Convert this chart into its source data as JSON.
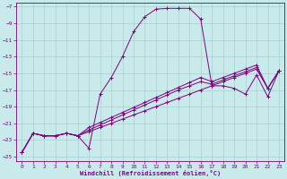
{
  "xlabel": "Windchill (Refroidissement éolien,°C)",
  "bg_color": "#c8eaea",
  "grid_color": "#aacece",
  "line_color": "#800080",
  "xlim": [
    -0.5,
    23.5
  ],
  "ylim": [
    -25.5,
    -6.5
  ],
  "yticks": [
    -7,
    -9,
    -11,
    -13,
    -15,
    -17,
    -19,
    -21,
    -23,
    -25
  ],
  "xticks": [
    0,
    1,
    2,
    3,
    4,
    5,
    6,
    7,
    8,
    9,
    10,
    11,
    12,
    13,
    14,
    15,
    16,
    17,
    18,
    19,
    20,
    21,
    22,
    23
  ],
  "line1_x": [
    0,
    1,
    2,
    3,
    4,
    5,
    6,
    7,
    8,
    9,
    10,
    11,
    12,
    13,
    14,
    15,
    16,
    17,
    18,
    19,
    20,
    21,
    22,
    23
  ],
  "line1_y": [
    -24.5,
    -22.2,
    -22.5,
    -22.5,
    -22.2,
    -22.5,
    -24.0,
    -17.5,
    -15.5,
    -13.0,
    -10.0,
    -8.2,
    -7.3,
    -7.2,
    -7.2,
    -7.2,
    -8.5,
    -16.5,
    -16.5,
    -16.8,
    -17.5,
    -15.2,
    -17.8,
    -14.7
  ],
  "line2_x": [
    0,
    1,
    2,
    3,
    4,
    5,
    6,
    7,
    8,
    9,
    10,
    11,
    12,
    13,
    14,
    15,
    16,
    17,
    18,
    19,
    20,
    21,
    22,
    23
  ],
  "line2_y": [
    -24.5,
    -22.2,
    -22.5,
    -22.5,
    -22.2,
    -22.5,
    -22.0,
    -21.5,
    -21.0,
    -20.5,
    -20.0,
    -19.5,
    -19.0,
    -18.5,
    -18.0,
    -17.5,
    -17.0,
    -16.5,
    -16.0,
    -15.5,
    -15.0,
    -14.5,
    -16.8,
    -14.7
  ],
  "line3_x": [
    0,
    1,
    2,
    3,
    4,
    5,
    6,
    7,
    8,
    9,
    10,
    11,
    12,
    13,
    14,
    15,
    16,
    17,
    18,
    19,
    20,
    21,
    22,
    23
  ],
  "line3_y": [
    -24.5,
    -22.2,
    -22.5,
    -22.5,
    -22.2,
    -22.5,
    -21.8,
    -21.2,
    -20.6,
    -20.0,
    -19.4,
    -18.8,
    -18.2,
    -17.6,
    -17.0,
    -16.5,
    -16.0,
    -16.3,
    -15.8,
    -15.3,
    -14.8,
    -14.3,
    -16.8,
    -14.7
  ],
  "line4_x": [
    0,
    1,
    2,
    3,
    4,
    5,
    6,
    7,
    8,
    9,
    10,
    11,
    12,
    13,
    14,
    15,
    16,
    17,
    18,
    19,
    20,
    21,
    22,
    23
  ],
  "line4_y": [
    -24.5,
    -22.2,
    -22.5,
    -22.5,
    -22.2,
    -22.5,
    -21.5,
    -20.9,
    -20.3,
    -19.7,
    -19.1,
    -18.5,
    -17.9,
    -17.3,
    -16.7,
    -16.1,
    -15.5,
    -16.0,
    -15.5,
    -15.0,
    -14.5,
    -14.0,
    -16.8,
    -14.7
  ]
}
